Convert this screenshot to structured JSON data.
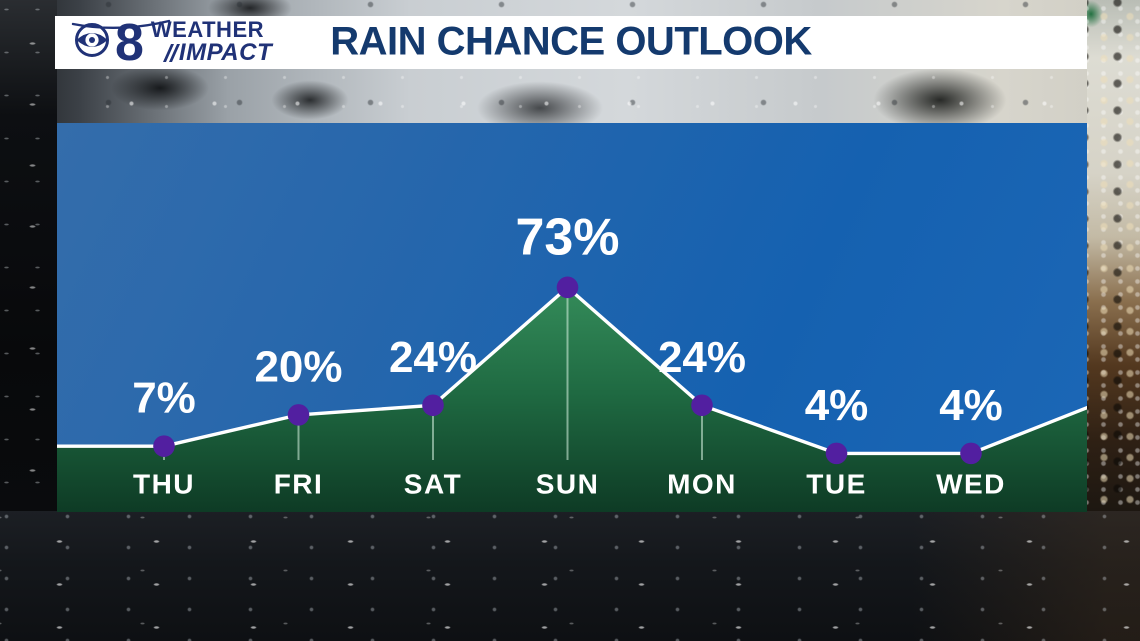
{
  "header": {
    "logo": {
      "station_number": "8",
      "brand_top": "WEATHER",
      "brand_bottom": "IMPACT"
    },
    "title": "RAIN CHANCE OUTLOOK"
  },
  "chart_data": {
    "type": "area",
    "title": "RAIN CHANCE OUTLOOK",
    "categories": [
      "THU",
      "FRI",
      "SAT",
      "SUN",
      "MON",
      "TUE",
      "WED"
    ],
    "values": [
      7,
      20,
      24,
      73,
      24,
      4,
      4
    ],
    "unit": "%",
    "ylim": [
      0,
      100
    ],
    "grid": false,
    "legend": false,
    "edge_left_value": 7,
    "edge_right_value": 24,
    "colors": {
      "plot_bg_top": "#346dab",
      "plot_bg_bottom": "#1562b2",
      "area_top": "#37905d",
      "area_mid": "#1f6a42",
      "area_bottom": "#0e3b25",
      "line": "#ffffff",
      "point": "#521fa0",
      "tick": "#d8f2e2",
      "label": "#ffffff",
      "title_navy": "#143a6e",
      "logo_navy": "#203277"
    }
  }
}
